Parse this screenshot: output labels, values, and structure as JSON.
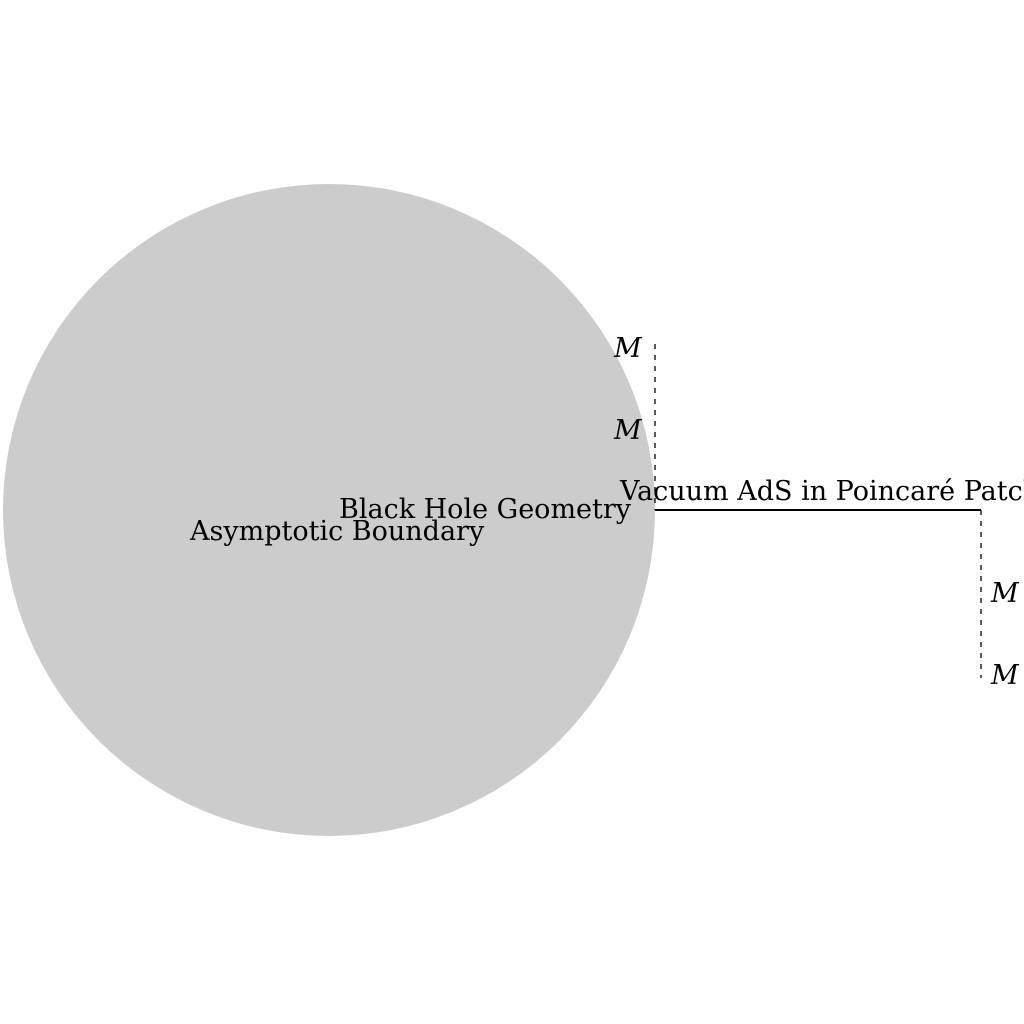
{
  "diagram": {
    "labels": {
      "black_hole": "Black Hole Geometry",
      "boundary": "Asymptotic Boundary",
      "vacuum": "Vacuum AdS in Poincaré Patch",
      "mass_left_upper": "M",
      "mass_left_lower": "M",
      "mass_right_upper": "M",
      "mass_right_lower": "M"
    },
    "colors": {
      "disk_fill": "#cccccc",
      "stroke": "#000000",
      "background": "#ffffff"
    }
  }
}
